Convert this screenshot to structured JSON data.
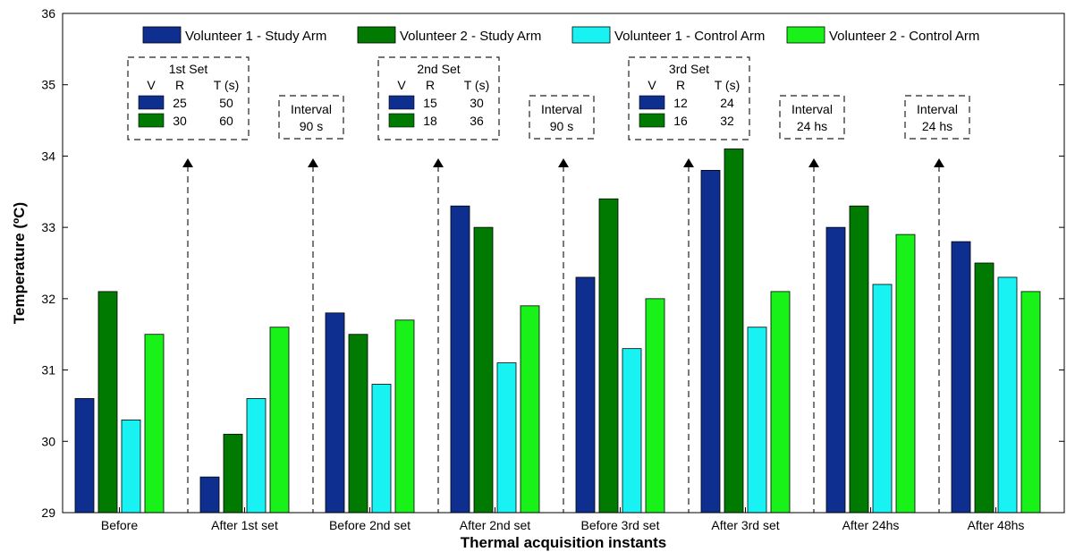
{
  "chart_data": {
    "type": "bar",
    "xlabel": "Thermal acquisition instants",
    "ylabel": "Temperature (ºC)",
    "ylim": [
      29,
      36
    ],
    "yticks": [
      29,
      30,
      31,
      32,
      33,
      34,
      35,
      36
    ],
    "grid": false,
    "legend_position": "top",
    "categories": [
      "Before",
      "After 1st set",
      "Before 2nd set",
      "After 2nd set",
      "Before 3rd set",
      "After 3rd set",
      "After 24hs",
      "After 48hs"
    ],
    "series": [
      {
        "name": "Volunteer 1 - Study Arm",
        "color": "#0e2f8f",
        "values": [
          30.6,
          29.5,
          31.8,
          33.3,
          32.3,
          33.8,
          33.0,
          32.8
        ]
      },
      {
        "name": "Volunteer 2 - Study Arm",
        "color": "#007a00",
        "values": [
          32.1,
          30.1,
          31.5,
          33.0,
          33.4,
          34.1,
          33.3,
          32.5
        ]
      },
      {
        "name": "Volunteer 1 - Control Arm",
        "color": "#19f2f2",
        "values": [
          30.3,
          30.6,
          30.8,
          31.1,
          31.3,
          31.6,
          32.2,
          32.3
        ]
      },
      {
        "name": "Volunteer 2 - Control Arm",
        "color": "#19f219",
        "values": [
          31.5,
          31.6,
          31.7,
          31.9,
          32.0,
          32.1,
          32.9,
          32.1
        ]
      }
    ],
    "annotations": {
      "sets": [
        {
          "title": "1st Set",
          "headers": [
            "V",
            "R",
            "T (s)"
          ],
          "rows": [
            {
              "swatch_color": "#0e2f8f",
              "R": "25",
              "T": "50"
            },
            {
              "swatch_color": "#007a00",
              "R": "30",
              "T": "60"
            }
          ]
        },
        {
          "title": "2nd Set",
          "headers": [
            "V",
            "R",
            "T (s)"
          ],
          "rows": [
            {
              "swatch_color": "#0e2f8f",
              "R": "15",
              "T": "30"
            },
            {
              "swatch_color": "#007a00",
              "R": "18",
              "T": "36"
            }
          ]
        },
        {
          "title": "3rd Set",
          "headers": [
            "V",
            "R",
            "T (s)"
          ],
          "rows": [
            {
              "swatch_color": "#0e2f8f",
              "R": "12",
              "T": "24"
            },
            {
              "swatch_color": "#007a00",
              "R": "16",
              "T": "32"
            }
          ]
        }
      ],
      "intervals": [
        {
          "line1": "Interval",
          "line2": "90 s"
        },
        {
          "line1": "Interval",
          "line2": "90 s"
        },
        {
          "line1": "Interval",
          "line2": "24 hs"
        },
        {
          "line1": "Interval",
          "line2": "24 hs"
        }
      ]
    }
  }
}
